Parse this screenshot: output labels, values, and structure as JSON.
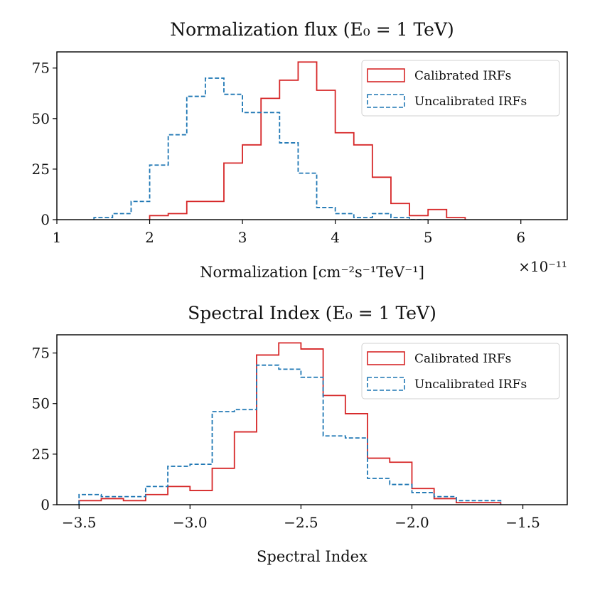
{
  "figure": {
    "background": "#ffffff"
  },
  "chart_data": [
    {
      "type": "histogram",
      "title": "Normalization flux (E₀ = 1 TeV)",
      "xlabel": "Normalization [cm⁻²s⁻¹TeV⁻¹]",
      "ylabel": "",
      "x_offset_label": "×10⁻¹¹",
      "xlim": [
        1.0,
        6.5
      ],
      "ylim": [
        0,
        83
      ],
      "xticks": [
        1,
        2,
        3,
        4,
        5,
        6
      ],
      "xtick_labels": [
        "1",
        "2",
        "3",
        "4",
        "5",
        "6"
      ],
      "yticks": [
        0,
        25,
        50,
        75
      ],
      "ytick_labels": [
        "0",
        "25",
        "50",
        "75"
      ],
      "grid": false,
      "legend_position": "top-right",
      "series": [
        {
          "name": "Calibrated IRFs",
          "color": "#d62728",
          "linestyle": "solid",
          "bin_edges": [
            2.0,
            2.2,
            2.4,
            2.6,
            2.8,
            3.0,
            3.2,
            3.4,
            3.6,
            3.8,
            4.0,
            4.2,
            4.4,
            4.6,
            4.8,
            5.0,
            5.2,
            5.4
          ],
          "counts": [
            2,
            3,
            9,
            9,
            28,
            37,
            60,
            69,
            78,
            64,
            43,
            37,
            21,
            8,
            2,
            5,
            1
          ]
        },
        {
          "name": "Uncalibrated IRFs",
          "color": "#1f77b4",
          "linestyle": "dashed",
          "bin_edges": [
            1.4,
            1.6,
            1.8,
            2.0,
            2.2,
            2.4,
            2.6,
            2.8,
            3.0,
            3.2,
            3.4,
            3.6,
            3.8,
            4.0,
            4.2,
            4.4,
            4.6,
            4.8,
            5.0
          ],
          "counts": [
            1,
            3,
            9,
            27,
            42,
            61,
            70,
            62,
            53,
            53,
            38,
            23,
            6,
            3,
            1,
            3,
            1,
            0
          ]
        }
      ]
    },
    {
      "type": "histogram",
      "title": "Spectral Index (E₀ = 1 TeV)",
      "xlabel": "Spectral Index",
      "ylabel": "",
      "xlim": [
        -3.6,
        -1.3
      ],
      "ylim": [
        0,
        84
      ],
      "xticks": [
        -3.5,
        -3.0,
        -2.5,
        -2.0,
        -1.5
      ],
      "xtick_labels": [
        "−3.5",
        "−3.0",
        "−2.5",
        "−2.0",
        "−1.5"
      ],
      "yticks": [
        0,
        25,
        50,
        75
      ],
      "ytick_labels": [
        "0",
        "25",
        "50",
        "75"
      ],
      "grid": false,
      "legend_position": "top-right",
      "series": [
        {
          "name": "Calibrated IRFs",
          "color": "#d62728",
          "linestyle": "solid",
          "bin_edges": [
            -3.5,
            -3.4,
            -3.3,
            -3.2,
            -3.1,
            -3.0,
            -2.9,
            -2.8,
            -2.7,
            -2.6,
            -2.5,
            -2.4,
            -2.3,
            -2.2,
            -2.1,
            -2.0,
            -1.9,
            -1.8,
            -1.7,
            -1.6
          ],
          "counts": [
            2,
            3,
            2,
            5,
            9,
            7,
            18,
            36,
            74,
            80,
            77,
            54,
            45,
            23,
            21,
            8,
            3,
            1,
            1
          ]
        },
        {
          "name": "Uncalibrated IRFs",
          "color": "#1f77b4",
          "linestyle": "dashed",
          "bin_edges": [
            -3.5,
            -3.4,
            -3.3,
            -3.2,
            -3.1,
            -3.0,
            -2.9,
            -2.8,
            -2.7,
            -2.6,
            -2.5,
            -2.4,
            -2.3,
            -2.2,
            -2.1,
            -2.0,
            -1.9,
            -1.8,
            -1.7,
            -1.6
          ],
          "counts": [
            5,
            4,
            4,
            9,
            19,
            20,
            46,
            47,
            69,
            67,
            63,
            34,
            33,
            13,
            10,
            6,
            4,
            2,
            2
          ]
        }
      ]
    }
  ]
}
